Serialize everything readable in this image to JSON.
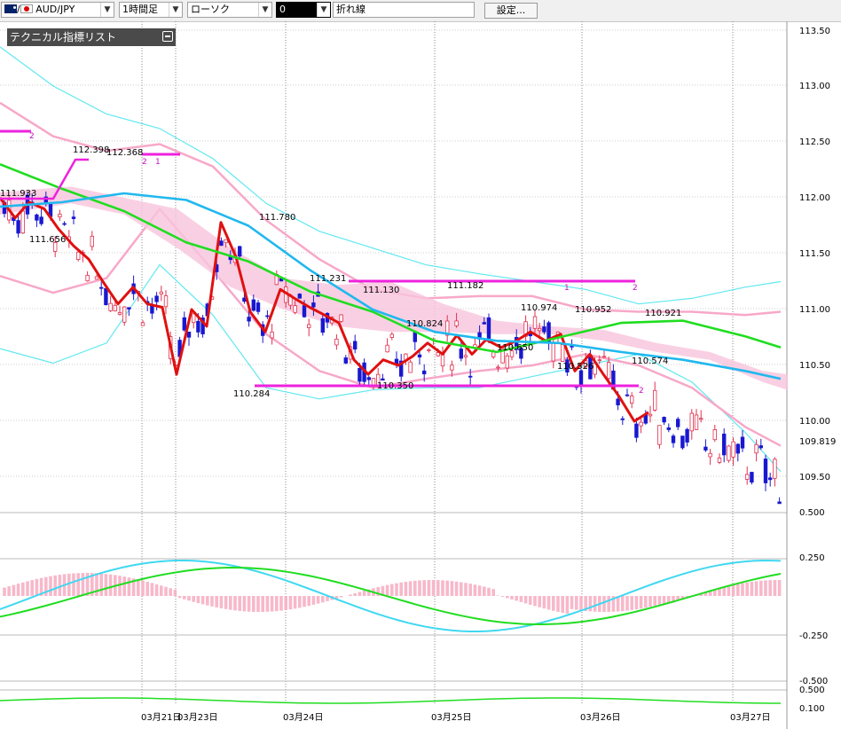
{
  "toolbar": {
    "symbol": "AUD/JPY",
    "interval": "1時間足",
    "chart_type": "ローソク",
    "overlay_box": "0",
    "line_mode": "折れ線",
    "settings_button": "設定..."
  },
  "indicator_panel": {
    "title": "テクニカル指標リスト"
  },
  "colors": {
    "candle_up": "#e0304e",
    "candle_down": "#1818d0",
    "red_line": "#e01010",
    "green_line": "#20dd20",
    "cyan_line": "#20b8ee",
    "pink_band": "#f7a8c8",
    "light_cyan": "#60e8f0",
    "magenta": "#ee22dd"
  },
  "price_axis": {
    "ticks": [
      "113.50",
      "113.00",
      "112.50",
      "112.00",
      "111.50",
      "111.00",
      "110.50",
      "110.00",
      "109.50"
    ],
    "current": "109.819"
  },
  "macd_axis": {
    "ticks": [
      "0.500",
      "0.250",
      "-0.250"
    ]
  },
  "bottom_axis": {
    "ticks": [
      "-0.500",
      "0.500",
      "0.100"
    ]
  },
  "dates": [
    "03月21日",
    "03月23日",
    "03月24日",
    "03月25日",
    "03月26日",
    "03月27日"
  ],
  "annotations": [
    "112.398",
    "112.368",
    "111.933",
    "111.656",
    "111.780",
    "111.231",
    "111.130",
    "111.182",
    "110.974",
    "110.952",
    "110.921",
    "110.824",
    "110.650",
    "110.526",
    "110.574",
    "110.284",
    "110.350"
  ],
  "markers": [
    "2",
    "2",
    "1",
    "1",
    "2",
    "2"
  ],
  "chart_data": {
    "type": "line",
    "series": [
      {
        "role": "red",
        "x": [
          0,
          17,
          33,
          50,
          66,
          83,
          100,
          116,
          133,
          150,
          166,
          183,
          199,
          216,
          233,
          249,
          266,
          282,
          299,
          316,
          332,
          349,
          366,
          382,
          399,
          415,
          432,
          449,
          465,
          482,
          499,
          515,
          532,
          548,
          565,
          582,
          598,
          615,
          632,
          648,
          665,
          681,
          698,
          715,
          731
        ],
        "y": [
          112.0,
          111.82,
          111.96,
          111.9,
          111.72,
          111.57,
          111.45,
          111.25,
          111.05,
          111.2,
          111.05,
          111.02,
          110.42,
          111.0,
          110.85,
          111.78,
          111.47,
          110.98,
          110.8,
          111.18,
          111.1,
          111.02,
          110.95,
          110.88,
          110.55,
          110.42,
          110.55,
          110.5,
          110.58,
          110.7,
          110.6,
          110.77,
          110.6,
          110.73,
          110.66,
          110.72,
          110.8,
          110.72,
          110.78,
          110.45,
          110.6,
          110.41,
          110.22,
          110.0,
          110.08
        ]
      },
      {
        "role": "green",
        "x": [
          0,
          70,
          140,
          210,
          280,
          350,
          420,
          490,
          560,
          630,
          700,
          770,
          840,
          880
        ],
        "y": [
          112.3,
          112.08,
          111.88,
          111.6,
          111.43,
          111.16,
          110.98,
          110.72,
          110.62,
          110.75,
          110.88,
          110.9,
          110.76,
          110.66
        ]
      },
      {
        "role": "cyan",
        "x": [
          0,
          70,
          140,
          210,
          280,
          350,
          420,
          490,
          560,
          630,
          700,
          770,
          840,
          880
        ],
        "y": [
          111.92,
          111.96,
          112.04,
          111.98,
          111.75,
          111.35,
          111.0,
          110.8,
          110.72,
          110.7,
          110.62,
          110.55,
          110.45,
          110.38
        ]
      }
    ],
    "ylim": [
      109.5,
      113.5
    ]
  }
}
